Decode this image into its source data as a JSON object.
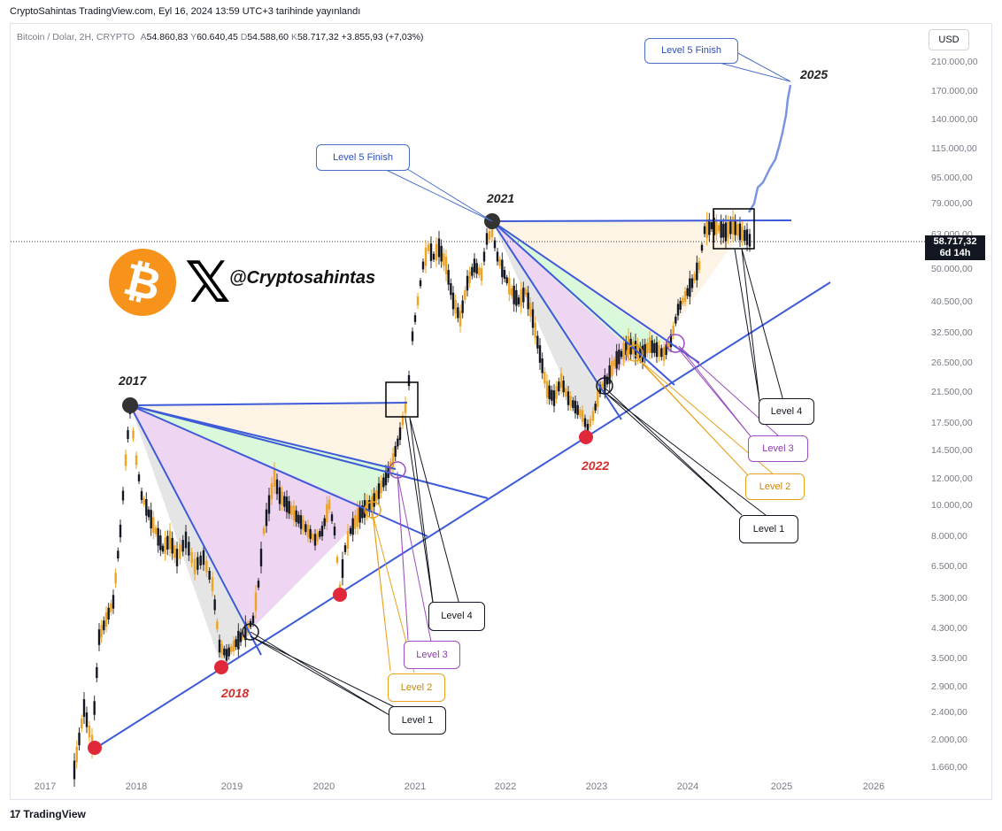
{
  "header": {
    "publish_text": "CryptoSahintas TradingView.com, Eyl 16, 2024 13:59 UTC+3 tarihinde yayınlandı"
  },
  "symbol": {
    "title": "Bitcoin / Dolar, 2H, CRYPTO",
    "open_label": "A",
    "open": "54.860,83",
    "high_label": "Y",
    "high": "60.640,45",
    "low_label": "D",
    "low": "54.588,60",
    "close_label": "K",
    "close": "58.717,32",
    "change": "+3.855,93 (+7,03%)"
  },
  "currency_button": "USD",
  "price_axis": [
    "210.000,00",
    "170.000,00",
    "140.000,00",
    "115.000,00",
    "95.000,00",
    "79.000,00",
    "63.000,00",
    "50.000,00",
    "40.500,00",
    "32.500,00",
    "26.500,00",
    "21.500,00",
    "17.500,00",
    "14.500,00",
    "12.000,00",
    "10.000,00",
    "8.000,00",
    "6.500,00",
    "5.300,00",
    "4.300,00",
    "3.500,00",
    "2.900,00",
    "2.400,00",
    "2.000,00",
    "1.660,00"
  ],
  "time_axis": [
    "2017",
    "2018",
    "2019",
    "2020",
    "2021",
    "2022",
    "2023",
    "2024",
    "2025",
    "2026"
  ],
  "last_price": {
    "value": "58.717,32",
    "countdown": "6d 14h"
  },
  "annotations": {
    "year_2017": "2017",
    "year_2018": "2018",
    "year_2021": "2021",
    "year_2022": "2022",
    "year_2025": "2025",
    "level5_left": "Level 5  Finish",
    "level5_right": "Level 5  Finish",
    "level1_a": "Level 1",
    "level2_a": "Level 2",
    "level3_a": "Level 3",
    "level4_a": "Level 4",
    "level1_b": "Level 1",
    "level2_b": "Level 2",
    "level3_b": "Level 3",
    "level4_b": "Level 4"
  },
  "brand": {
    "logo_glyph": "₿",
    "x_glyph": "𝕏",
    "handle": "@Cryptosahintas"
  },
  "footer": {
    "mark": "17",
    "name": "TradingView"
  },
  "colors": {
    "bull": "#f0a31e",
    "bear": "#131722",
    "trend": "#3d5ad8",
    "level1": "#131722",
    "level2": "#e8a21e",
    "level3": "#9b4fc0",
    "level4": "#131722",
    "level5": "#4a6fc9",
    "pivot_low": "#e0283a",
    "pivot_high": "#333333"
  }
}
